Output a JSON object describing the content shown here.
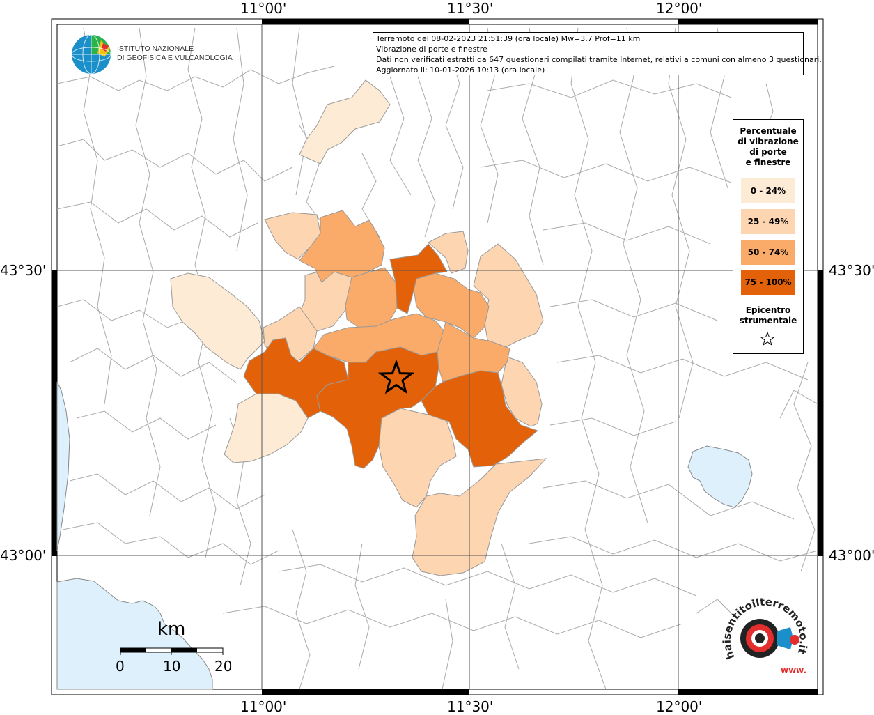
{
  "info": {
    "line1": "Terremoto del 08-02-2023 21:51:39 (ora locale) Mw=3.7 Prof=11 km",
    "line2": "Vibrazione di porte e finestre",
    "line3": "Dati non verificati estratti da 647 questionari compilati tramite Internet, relativi a comuni con almeno 3 questionari.",
    "line4": "Aggiornato il: 10-01-2026 10:13 (ora locale)"
  },
  "institute": {
    "line1": "ISTITUTO NAZIONALE",
    "line2": "DI GEOFISICA E VULCANOLOGIA"
  },
  "axes": {
    "top": [
      "11°00'",
      "11°30'",
      "12°00'"
    ],
    "bottom": [
      "11°00'",
      "11°30'",
      "12°00'"
    ],
    "left": [
      "43°30'",
      "43°00'"
    ],
    "right": [
      "43°30'",
      "43°00'"
    ]
  },
  "legend": {
    "title_line1": "Percentuale",
    "title_line2": "di vibrazione",
    "title_line3": "di porte",
    "title_line4": "e finestre",
    "classes": [
      {
        "label": "0 - 24%",
        "color": "#fdebd6"
      },
      {
        "label": "25 - 49%",
        "color": "#fdd5b1"
      },
      {
        "label": "50 - 74%",
        "color": "#fbab69"
      },
      {
        "label": "75 - 100%",
        "color": "#e36209"
      }
    ],
    "epicenter_line1": "Epicentro",
    "epicenter_line2": "strumentale"
  },
  "scale": {
    "unit": "km",
    "ticks": [
      "0",
      "10",
      "20"
    ]
  },
  "logo": {
    "text": "haisentitoilterremoto.it",
    "url_text": "www."
  },
  "colors": {
    "water": "#ddf0fb",
    "border": "#aaaaaa",
    "grid": "#555555"
  }
}
